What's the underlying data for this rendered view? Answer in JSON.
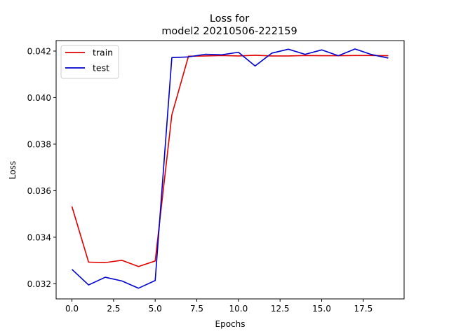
{
  "chart_data": {
    "type": "line",
    "title": [
      "Loss for",
      "model2 20210506-222159"
    ],
    "xlabel": "Epochs",
    "ylabel": "Loss",
    "xlim": [
      -0.95,
      19.95
    ],
    "ylim": [
      0.03135,
      0.04245
    ],
    "xticks": [
      0.0,
      2.5,
      5.0,
      7.5,
      10.0,
      12.5,
      15.0,
      17.5
    ],
    "xtick_labels": [
      "0.0",
      "2.5",
      "5.0",
      "7.5",
      "10.0",
      "12.5",
      "15.0",
      "17.5"
    ],
    "yticks": [
      0.032,
      0.034,
      0.036,
      0.038,
      0.04,
      0.042
    ],
    "ytick_labels": [
      "0.032",
      "0.034",
      "0.036",
      "0.038",
      "0.040",
      "0.042"
    ],
    "grid": false,
    "legend_position": "top-left",
    "x": [
      0,
      1,
      2,
      3,
      4,
      5,
      6,
      7,
      8,
      9,
      10,
      11,
      12,
      13,
      14,
      15,
      16,
      17,
      18,
      19
    ],
    "series": [
      {
        "name": "train",
        "color": "#e00000",
        "values": [
          0.03532,
          0.03293,
          0.03291,
          0.03301,
          0.03274,
          0.03298,
          0.03926,
          0.04178,
          0.04179,
          0.04181,
          0.04179,
          0.04182,
          0.04179,
          0.04179,
          0.04181,
          0.0418,
          0.0418,
          0.04181,
          0.04181,
          0.0418
        ]
      },
      {
        "name": "test",
        "color": "#0000cc",
        "values": [
          0.03262,
          0.03195,
          0.03228,
          0.03212,
          0.03181,
          0.03214,
          0.04172,
          0.04175,
          0.04186,
          0.04184,
          0.04195,
          0.04136,
          0.04191,
          0.04208,
          0.04186,
          0.04205,
          0.0418,
          0.04209,
          0.04185,
          0.0417
        ]
      }
    ]
  }
}
